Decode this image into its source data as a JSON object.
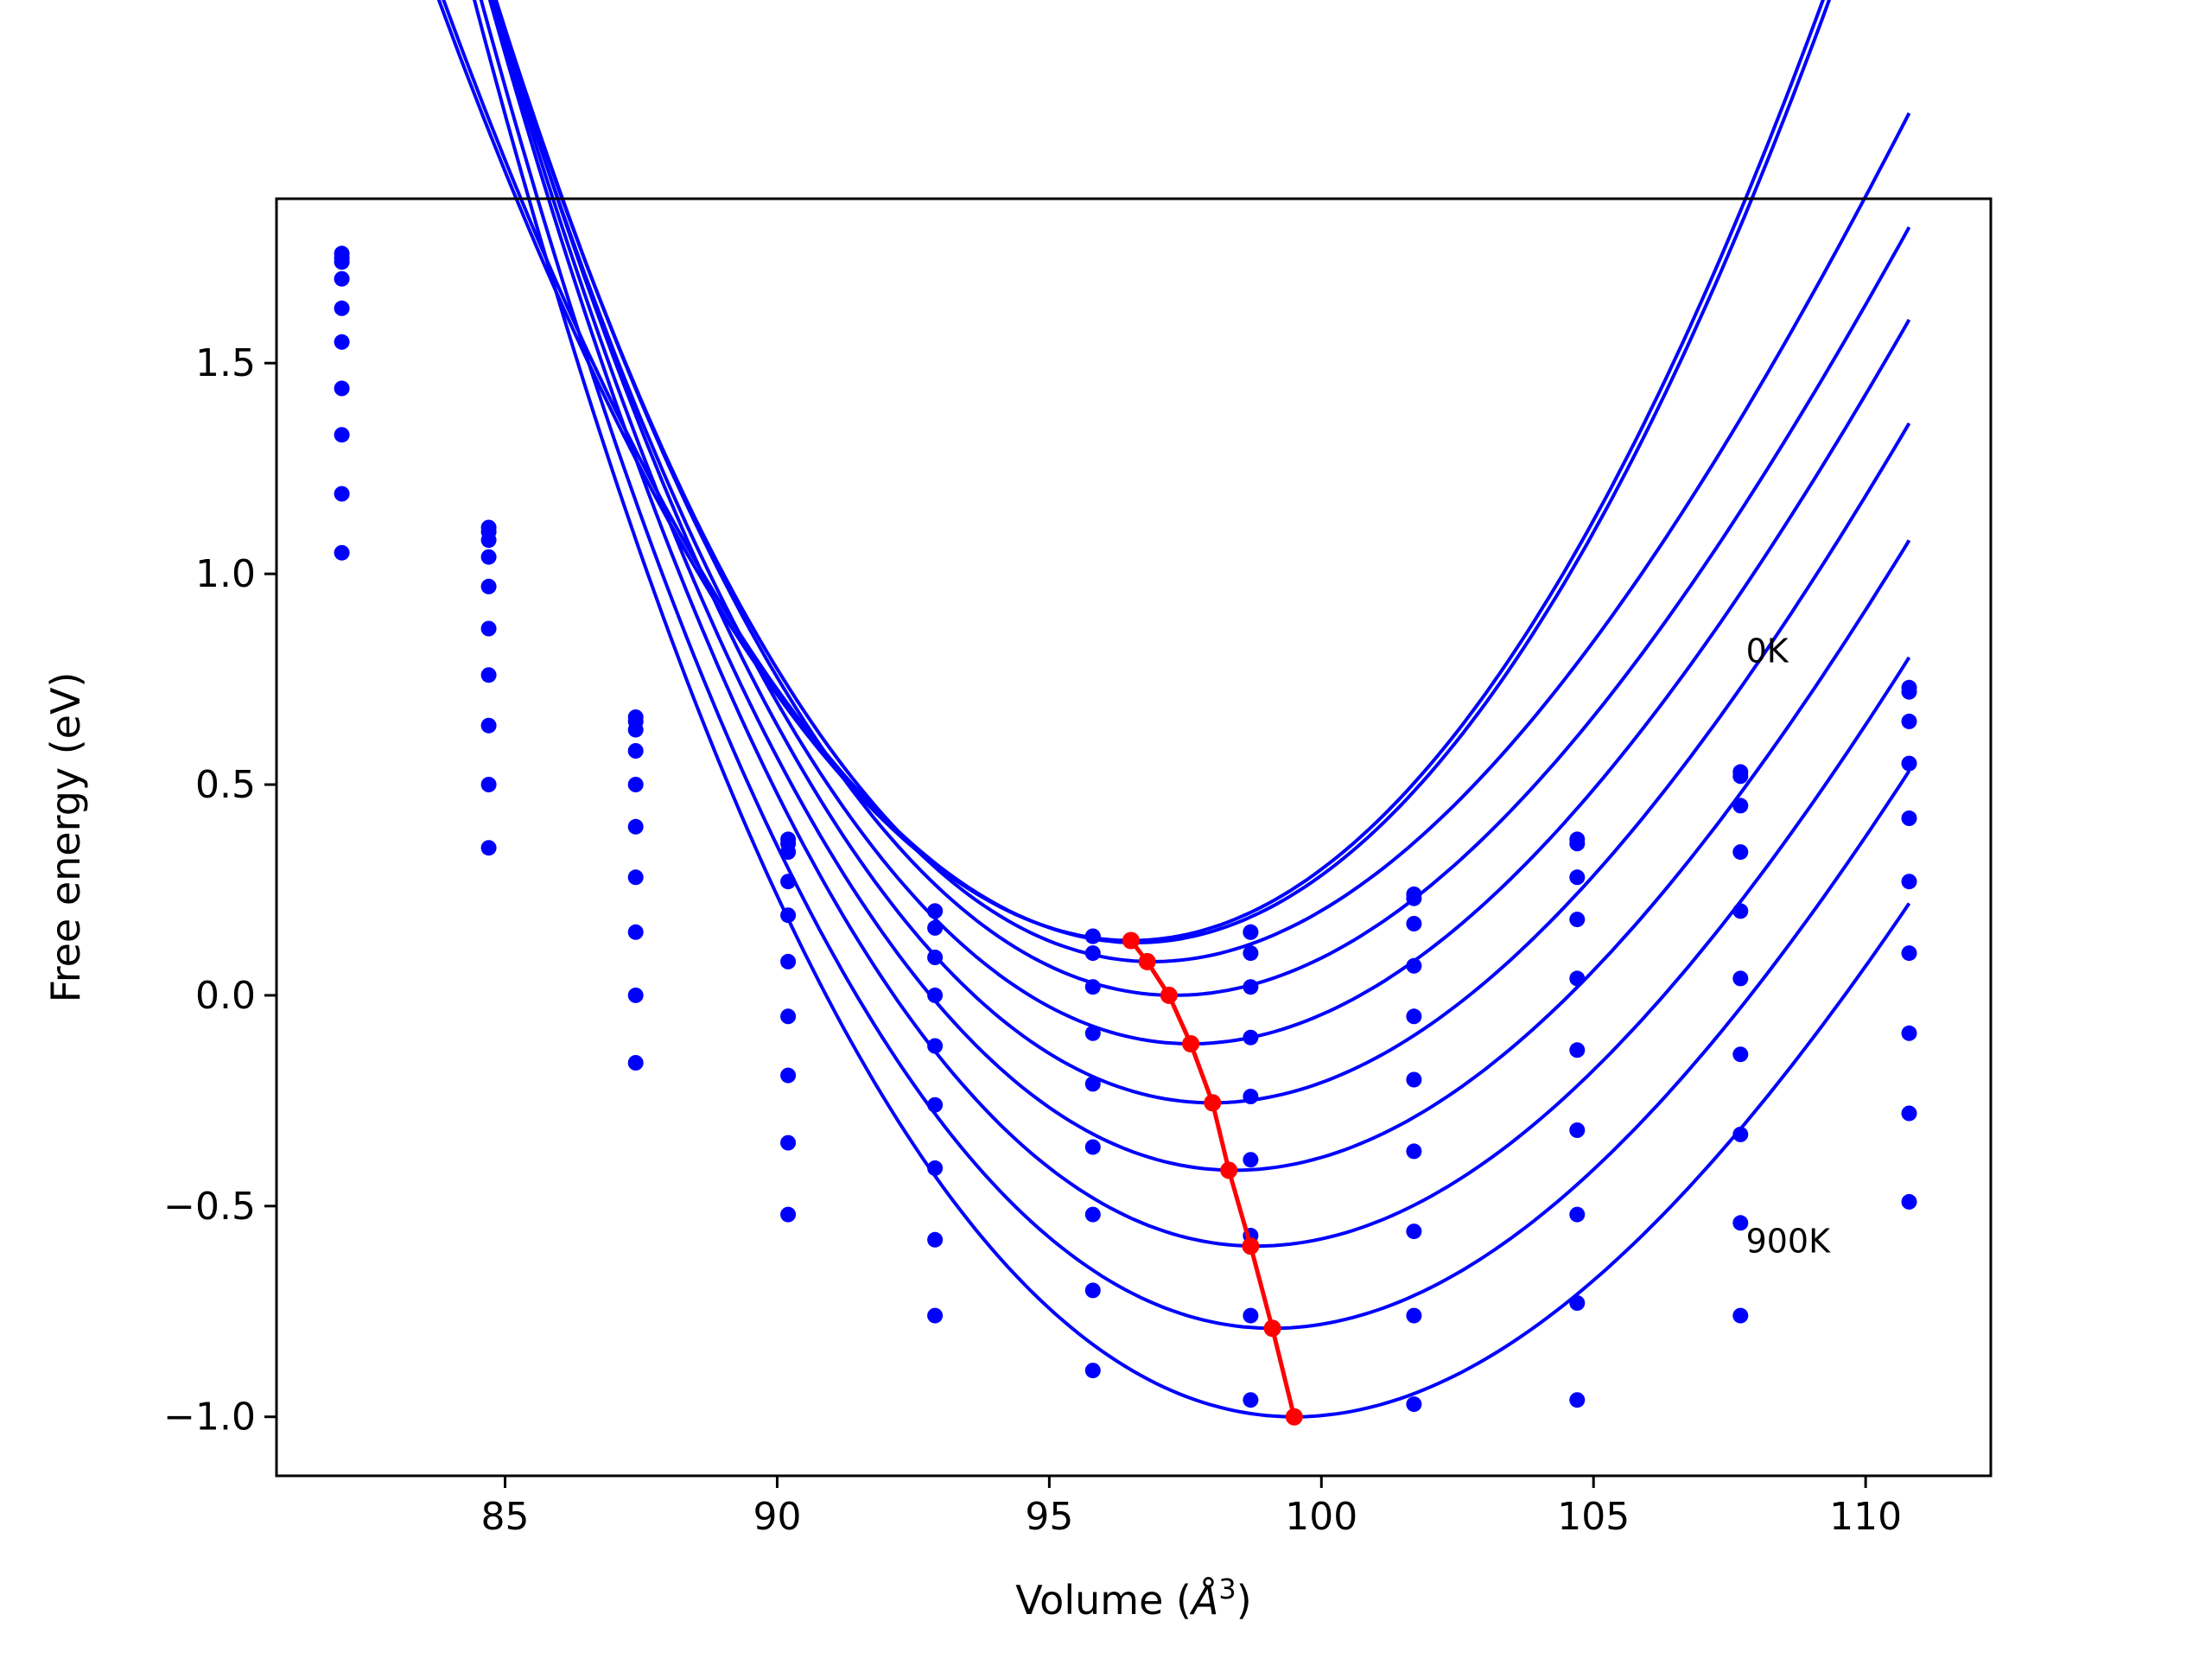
{
  "chart_data": {
    "type": "line",
    "title": "",
    "xlabel": "Volume (",
    "xlabel_unit": "Å",
    "xlabel_exp": "3",
    "xlabel_close": ")",
    "ylabel": "Free energy (eV)",
    "xlim": [
      80.8,
      112.3
    ],
    "ylim": [
      -1.14,
      1.89
    ],
    "xticks": [
      85,
      90,
      95,
      100,
      105,
      110
    ],
    "xtick_labels": [
      "85",
      "90",
      "95",
      "100",
      "105",
      "110"
    ],
    "yticks": [
      -1.0,
      -0.5,
      0.0,
      0.5,
      1.0,
      1.5
    ],
    "ytick_labels": [
      "−1.0",
      "−0.5",
      "0.0",
      "0.5",
      "1.0",
      "1.5"
    ],
    "grid": false,
    "annotations": [
      {
        "text": "0K",
        "x": 107.8,
        "y": 0.79
      },
      {
        "text": "900K",
        "x": 107.8,
        "y": -0.61
      }
    ],
    "volumes": [
      82.0,
      84.7,
      87.4,
      90.2,
      92.9,
      95.8,
      98.7,
      101.7,
      104.7,
      107.7,
      110.8
    ],
    "series": [
      {
        "points": [
          1.76,
          1.11,
          0.66,
          0.37,
          0.2,
          0.14,
          0.15,
          0.24,
          0.37,
          0.53,
          0.73
        ],
        "min": [
          96.5,
          0.13
        ],
        "fit": {
          "b": 0.0138,
          "c": 0.0,
          "x0": 82.0,
          "x1": 110.8
        }
      },
      {
        "points": [
          1.75,
          1.1,
          0.65,
          0.36,
          0.2,
          0.14,
          0.15,
          0.23,
          0.36,
          0.52,
          0.72
        ],
        "min": [
          96.6,
          0.125
        ],
        "fit": {
          "b": 0.0138,
          "c": 0.0,
          "x0": 82.0,
          "x1": 110.8
        }
      },
      {
        "points": [
          1.74,
          1.08,
          0.63,
          0.34,
          0.16,
          0.1,
          0.1,
          0.17,
          0.28,
          0.45,
          0.65
        ],
        "min": [
          96.9,
          0.08
        ],
        "fit": {
          "b": 0.0132,
          "c": -0.0002,
          "x0": 82.0,
          "x1": 110.8
        }
      },
      {
        "points": [
          1.7,
          1.04,
          0.58,
          0.27,
          0.09,
          0.02,
          0.02,
          0.07,
          0.18,
          0.34,
          0.55
        ],
        "min": [
          97.3,
          0.0
        ],
        "fit": {
          "b": 0.0127,
          "c": -0.0002,
          "x0": 82.0,
          "x1": 110.8
        }
      },
      {
        "points": [
          1.63,
          0.97,
          0.5,
          0.19,
          0.0,
          -0.09,
          -0.1,
          -0.05,
          0.04,
          0.2,
          0.42
        ],
        "min": [
          97.6,
          -0.115
        ],
        "fit": {
          "b": 0.0125,
          "c": -0.0002,
          "x0": 82.0,
          "x1": 110.8
        }
      },
      {
        "points": [
          1.55,
          0.87,
          0.4,
          0.08,
          -0.12,
          -0.21,
          -0.24,
          -0.2,
          -0.13,
          0.04,
          0.27
        ],
        "min": [
          98.0,
          -0.255
        ],
        "fit": {
          "b": 0.0124,
          "c": -0.0002,
          "x0": 82.0,
          "x1": 110.8
        }
      },
      {
        "points": [
          1.44,
          0.76,
          0.28,
          -0.05,
          -0.26,
          -0.36,
          -0.39,
          -0.37,
          -0.32,
          -0.14,
          0.1
        ],
        "min": [
          98.4,
          -0.415
        ],
        "fit": {
          "b": 0.0122,
          "c": -0.0002,
          "x0": 82.0,
          "x1": 110.8
        }
      },
      {
        "points": [
          1.33,
          0.64,
          0.15,
          -0.19,
          -0.41,
          -0.52,
          -0.57,
          -0.56,
          -0.52,
          -0.33,
          -0.09
        ],
        "min": [
          98.8,
          -0.595
        ],
        "fit": {
          "b": 0.0121,
          "c": -0.0002,
          "x0": 82.0,
          "x1": 110.8
        }
      },
      {
        "points": [
          1.19,
          0.5,
          0.0,
          -0.35,
          -0.58,
          -0.7,
          -0.76,
          -0.76,
          -0.73,
          -0.54,
          -0.28
        ],
        "min": [
          99.1,
          -0.79
        ],
        "fit": {
          "b": 0.012,
          "c": -0.0002,
          "x0": 82.0,
          "x1": 110.8
        }
      },
      {
        "points": [
          1.05,
          0.35,
          -0.16,
          -0.52,
          -0.76,
          -0.89,
          -0.96,
          -0.97,
          -0.96,
          -0.76,
          -0.49
        ],
        "min": [
          99.5,
          -1.0
        ],
        "fit": {
          "b": 0.0118,
          "c": -0.0002,
          "x0": 82.0,
          "x1": 110.8
        }
      }
    ],
    "minimum_path": {
      "name": "",
      "x": [
        96.5,
        96.8,
        97.2,
        97.6,
        98.0,
        98.3,
        98.7,
        99.1,
        99.5
      ],
      "y": [
        0.13,
        0.08,
        0.0,
        -0.115,
        -0.255,
        -0.415,
        -0.595,
        -0.79,
        -1.0
      ]
    },
    "colors": {
      "series": "#0000ff",
      "minimum_path": "#ff0000",
      "axes": "#000000"
    }
  }
}
